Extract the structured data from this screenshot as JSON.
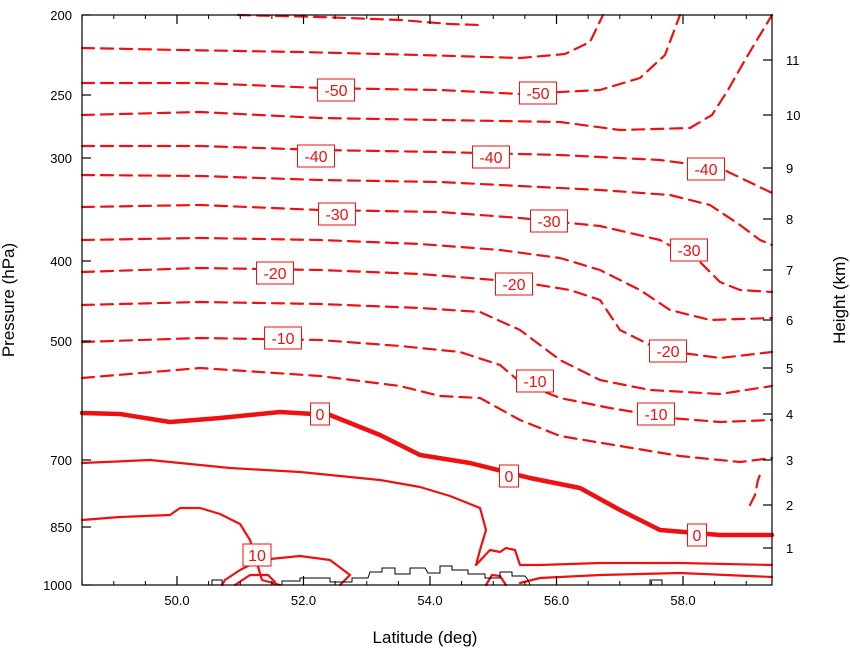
{
  "chart_data": {
    "type": "contour",
    "xlabel": "Latitude (deg)",
    "ylabel_left": "Pressure (hPa)",
    "ylabel_right": "Height (km)",
    "x_range": [
      48.5,
      59.4
    ],
    "x_ticks": [
      50.0,
      52.0,
      54.0,
      56.0,
      58.0
    ],
    "x_tick_labels": [
      "50.0",
      "52.0",
      "54.0",
      "56.0",
      "58.0"
    ],
    "y_left_ticks": [
      200,
      250,
      300,
      400,
      500,
      700,
      850,
      1000
    ],
    "y_left_tick_labels": [
      "200",
      "250",
      "300",
      "400",
      "500",
      "700",
      "850",
      "1000"
    ],
    "y_right_tick_labels": [
      "1",
      "2",
      "3",
      "4",
      "5",
      "6",
      "7",
      "8",
      "9",
      "10",
      "11"
    ],
    "colors": {
      "contour": "#ee1111",
      "frame": "#000000",
      "terrain": "#000000"
    },
    "contour_levels": [
      -50,
      -40,
      -30,
      -20,
      -10,
      0,
      10
    ],
    "contour_labels": [
      "-50",
      "-50",
      "-40",
      "-40",
      "-40",
      "-30",
      "-30",
      "-30",
      "-20",
      "-20",
      "-20",
      "-10",
      "-10",
      "-10",
      "0",
      "0",
      "0",
      "10"
    ]
  }
}
